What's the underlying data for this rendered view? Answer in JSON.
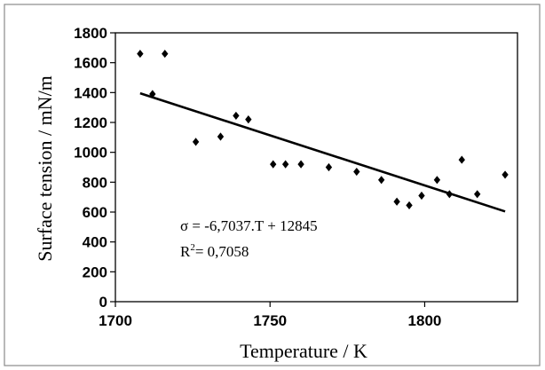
{
  "chart_data": {
    "type": "scatter",
    "title": "",
    "xlabel": "Temperature / K",
    "ylabel": "Surface tension / mN/m",
    "xlim": [
      1700,
      1830
    ],
    "ylim": [
      0,
      1800
    ],
    "xticks": [
      1700,
      1750,
      1800
    ],
    "xtick_labels": [
      "1700",
      "1750",
      "1800"
    ],
    "yticks": [
      0,
      200,
      400,
      600,
      800,
      1000,
      1200,
      1400,
      1600,
      1800
    ],
    "ytick_labels": [
      "0",
      "200",
      "400",
      "600",
      "800",
      "1000",
      "1200",
      "1400",
      "1600",
      "1800"
    ],
    "grid": false,
    "legend": "none",
    "marker": "diamond",
    "series": [
      {
        "points": [
          {
            "x": 1708,
            "y": 1660
          },
          {
            "x": 1712,
            "y": 1390
          },
          {
            "x": 1716,
            "y": 1660
          },
          {
            "x": 1726,
            "y": 1070
          },
          {
            "x": 1734,
            "y": 1105
          },
          {
            "x": 1739,
            "y": 1245
          },
          {
            "x": 1743,
            "y": 1220
          },
          {
            "x": 1751,
            "y": 920
          },
          {
            "x": 1755,
            "y": 920
          },
          {
            "x": 1760,
            "y": 920
          },
          {
            "x": 1769,
            "y": 900
          },
          {
            "x": 1778,
            "y": 870
          },
          {
            "x": 1786,
            "y": 815
          },
          {
            "x": 1791,
            "y": 670
          },
          {
            "x": 1795,
            "y": 645
          },
          {
            "x": 1799,
            "y": 710
          },
          {
            "x": 1804,
            "y": 815
          },
          {
            "x": 1808,
            "y": 720
          },
          {
            "x": 1812,
            "y": 950
          },
          {
            "x": 1817,
            "y": 720
          },
          {
            "x": 1826,
            "y": 850
          }
        ]
      }
    ],
    "trendline": {
      "type": "linear",
      "slope": -6.7037,
      "intercept": 12845,
      "x_range": [
        1708,
        1826
      ]
    },
    "annotations": {
      "equation": "σ = -6,7037.T + 12845",
      "r2_prefix": "R",
      "r2_sup": "2",
      "r2_value": "= 0,7058"
    }
  }
}
